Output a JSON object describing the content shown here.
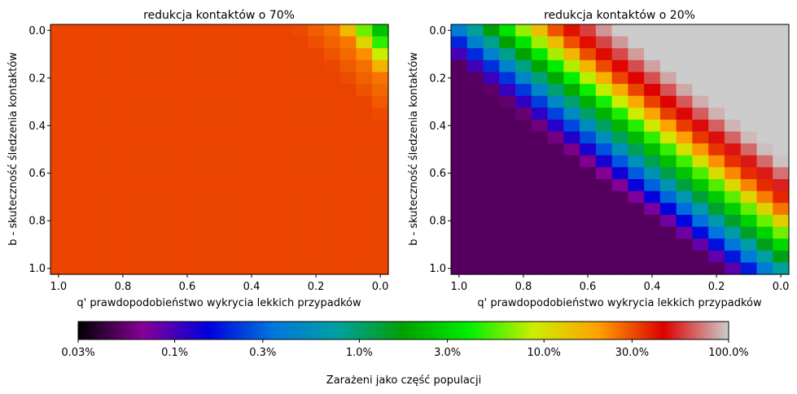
{
  "chart_data": [
    {
      "type": "heatmap",
      "title": "redukcja kontaktów o 70%",
      "xlabel": "q' prawdopodobieństwo wykrycia lekkich przypadków",
      "ylabel": "b - skuteczność śledzenia kontaktów",
      "xlim": [
        1.0,
        0.0
      ],
      "ylim": [
        0.0,
        1.0
      ],
      "x_ticks": [
        "1.0",
        "0.8",
        "0.6",
        "0.4",
        "0.2",
        "0.0"
      ],
      "y_ticks": [
        "0.0",
        "0.2",
        "0.4",
        "0.6",
        "0.8",
        "1.0"
      ],
      "grid": false,
      "contact_reduction": 0.7,
      "peak_band_intercept": 0.18,
      "peak_band_slope": 1.43,
      "above_band_note": "colder cells (lower % infected) below-left of the diagonal band; red/hot cells (near 30% infected) above-right"
    },
    {
      "type": "heatmap",
      "title": "redukcja kontaktów o 20%",
      "xlabel": "q' prawdopodobieństwo wykrycia lekkich przypadków",
      "ylabel": "b - skuteczność śledzenia kontaktów",
      "xlim": [
        1.0,
        0.0
      ],
      "ylim": [
        0.0,
        1.0
      ],
      "x_ticks": [
        "1.0",
        "0.8",
        "0.6",
        "0.4",
        "0.2",
        "0.0"
      ],
      "y_ticks": [
        "0.0",
        "0.2",
        "0.4",
        "0.6",
        "0.8",
        "1.0"
      ],
      "grid": false,
      "contact_reduction": 0.2,
      "peak_band_intercept": 0.74,
      "peak_band_slope": 1.05,
      "above_band_note": "red/light-grey cells (30%–100% infected) above-right of the diagonal band; blue cells below-left"
    }
  ],
  "colorbar": {
    "label": "Zarażeni jako część populacji",
    "scale": "log",
    "range": [
      0.03,
      100.0
    ],
    "ticks": [
      {
        "value": 0.03,
        "label": "0.03%"
      },
      {
        "value": 0.1,
        "label": "0.1%"
      },
      {
        "value": 0.3,
        "label": "0.3%"
      },
      {
        "value": 1.0,
        "label": "1.0%"
      },
      {
        "value": 3.0,
        "label": "3.0%"
      },
      {
        "value": 10.0,
        "label": "10.0%"
      },
      {
        "value": 30.0,
        "label": "30.0%"
      },
      {
        "value": 100.0,
        "label": "100.0%"
      }
    ],
    "colormap": "nipy_spectral",
    "colormap_stops": [
      {
        "t": 0.0,
        "color": "#000000"
      },
      {
        "t": 0.1,
        "color": "#860096"
      },
      {
        "t": 0.2,
        "color": "#0000dd"
      },
      {
        "t": 0.3,
        "color": "#0077dd"
      },
      {
        "t": 0.4,
        "color": "#00a0a0"
      },
      {
        "t": 0.5,
        "color": "#00a000"
      },
      {
        "t": 0.6,
        "color": "#00ee00"
      },
      {
        "t": 0.7,
        "color": "#ccee00"
      },
      {
        "t": 0.8,
        "color": "#ffa000"
      },
      {
        "t": 0.9,
        "color": "#dd0000"
      },
      {
        "t": 1.0,
        "color": "#cccccc"
      }
    ]
  }
}
